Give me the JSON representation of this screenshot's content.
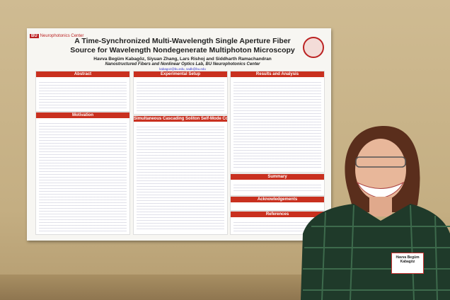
{
  "poster": {
    "logo_text": "Neurophotonics Center",
    "title": "A Time-Synchronized Multi-Wavelength Single Aperture Fiber Source for Wavelength Nondegenerate Multiphoton Microscopy",
    "authors": "Havva Begüm Kabagöz, Siyuan Zhang, Lars Rishoj and Siddharth Ramachandran",
    "affiliation": "Nanostructured Fibers and Nonlinear Optics Lab, BU Neurophotonics Center",
    "email": "kabagoz@bu.edu, sadk@bu.edu",
    "sections": [
      "Abstract",
      "Motivation",
      "Experimental Setup",
      "Simultaneous Cascading Soliton Self-Mode Conversion",
      "Results and Analysis",
      "Summary",
      "Acknowledgements",
      "References"
    ]
  },
  "name_tag": "Havva Begüm Kabagöz"
}
